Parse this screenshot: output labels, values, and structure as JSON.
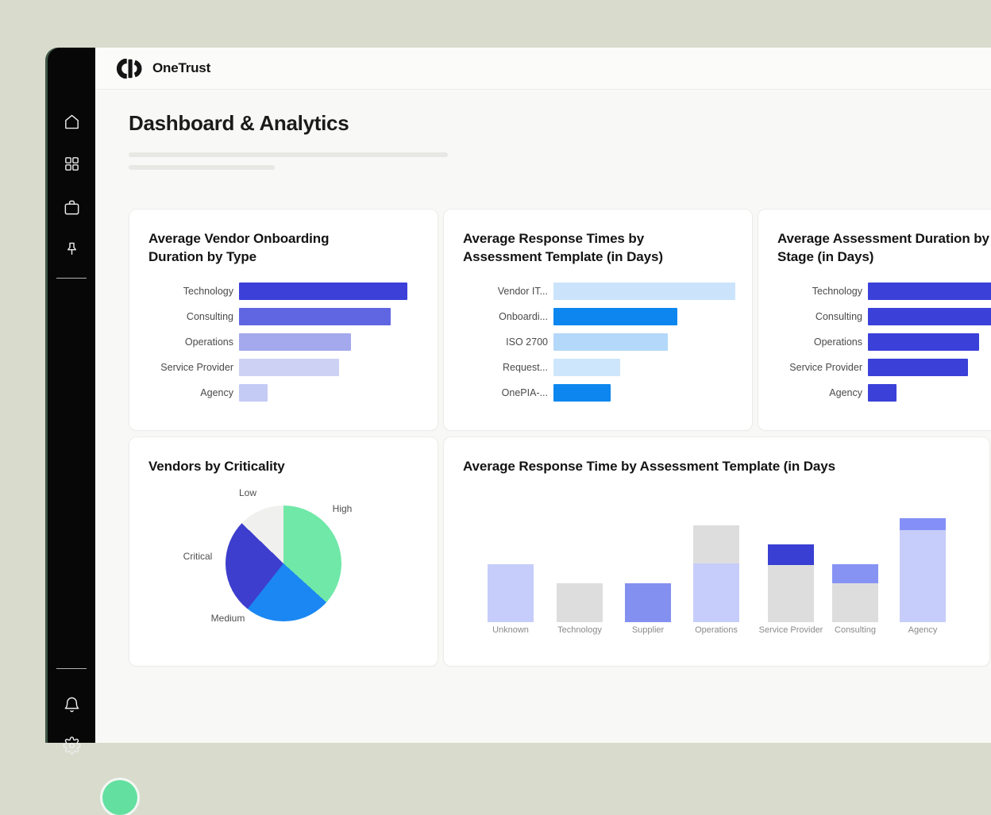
{
  "app": {
    "logo_text": "OneTrust"
  },
  "page": {
    "title": "Dashboard & Analytics"
  },
  "sidebar": {
    "nav_items": [
      {
        "icon": "home-icon"
      },
      {
        "icon": "apps-grid-icon"
      },
      {
        "icon": "briefcase-icon"
      },
      {
        "icon": "pin-icon"
      }
    ],
    "bottom_items": [
      {
        "icon": "bell-icon"
      },
      {
        "icon": "gear-icon"
      }
    ],
    "avatar_color": "#63e0a0"
  },
  "colors": {
    "page_background": "#d9dbcd",
    "sidebar": "#070707",
    "surface": "#f8f8f6",
    "card": "#ffffff",
    "accent_blue": "#3c40d9",
    "accent_bright_blue": "#0d87ef",
    "accent_green": "#70e8a8"
  },
  "chart_data": [
    {
      "type": "bar",
      "orientation": "horizontal",
      "title": "Average Vendor Onboarding Duration by Type",
      "categories": [
        "Technology",
        "Consulting",
        "Operations",
        "Service Provider",
        "Agency"
      ],
      "values": [
        212,
        191,
        141,
        126,
        36
      ],
      "value_note": "relative bar lengths in px; no axis shown",
      "colors": [
        "#3c40d9",
        "#6066e2",
        "#a3a9ec",
        "#cdd2f5",
        "#c4cbf5"
      ],
      "grid": false,
      "legend": false
    },
    {
      "type": "bar",
      "orientation": "horizontal",
      "title": "Average Response Times by Assessment Template (in Days)",
      "categories": [
        "Vendor IT...",
        "Onboardi...",
        "ISO 2700",
        "Request...",
        "OnePIA-..."
      ],
      "values": [
        229,
        156,
        144,
        84,
        72
      ],
      "value_note": "relative bar lengths in px; no axis shown",
      "colors": [
        "#cbe4fb",
        "#0d87ef",
        "#b3d8f9",
        "#cde6fb",
        "#0d87ef"
      ],
      "grid": false,
      "legend": false
    },
    {
      "type": "bar",
      "orientation": "horizontal",
      "title": "Average Assessment Duration by Stage (in Days)",
      "clipped_by_viewport_right": true,
      "categories": [
        "Technology",
        "Consulting",
        "Operations",
        "Service Provider",
        "Agency"
      ],
      "values": [
        208,
        188,
        140,
        126,
        36
      ],
      "value_note": "relative bar lengths in px; two longest bars cut off at screen edge",
      "colors": [
        "#3a40d8",
        "#3a40d8",
        "#3a40d8",
        "#3a40d8",
        "#3a40d8"
      ],
      "grid": false,
      "legend": false
    },
    {
      "type": "pie",
      "title": "Vendors by Criticality",
      "start_angle_deg": 314,
      "slices": [
        {
          "label": "Low",
          "pct": 12.8,
          "color": "#f0f0ee"
        },
        {
          "label": "High",
          "pct": 36.7,
          "color": "#70e8a8"
        },
        {
          "label": "Medium",
          "pct": 23.9,
          "color": "#1b87f2"
        },
        {
          "label": "Critical",
          "pct": 26.6,
          "color": "#3d3ecd"
        }
      ],
      "legend": false
    },
    {
      "type": "bar",
      "orientation": "vertical",
      "stacked": true,
      "title": "Average Response Time by Assessment Template (in Days",
      "value_note": "segment heights in px, bottom-to-top; no axis shown",
      "stacks": [
        {
          "label": "Unknown",
          "segments": [
            {
              "color": "#c6cdfa",
              "value": 73
            }
          ]
        },
        {
          "label": "Technology",
          "segments": [
            {
              "color": "#dddddd",
              "value": 49
            }
          ]
        },
        {
          "label": "Supplier",
          "segments": [
            {
              "color": "#8490f0",
              "value": 49
            }
          ]
        },
        {
          "label": "Operations",
          "segments": [
            {
              "color": "#c6cdfa",
              "value": 74
            },
            {
              "color": "#dddddd",
              "value": 48
            }
          ]
        },
        {
          "label": "Service Provider",
          "segments": [
            {
              "color": "#dddddd",
              "value": 72
            },
            {
              "color": "#383fd2",
              "value": 26
            }
          ]
        },
        {
          "label": "Consulting",
          "segments": [
            {
              "color": "#dddddd",
              "value": 49
            },
            {
              "color": "#8793f3",
              "value": 24
            }
          ]
        },
        {
          "label": "Agency",
          "segments": [
            {
              "color": "#c6cdfa",
              "value": 116
            },
            {
              "color": "#8490f7",
              "value": 15
            }
          ]
        }
      ],
      "grid": false,
      "legend": false
    }
  ]
}
